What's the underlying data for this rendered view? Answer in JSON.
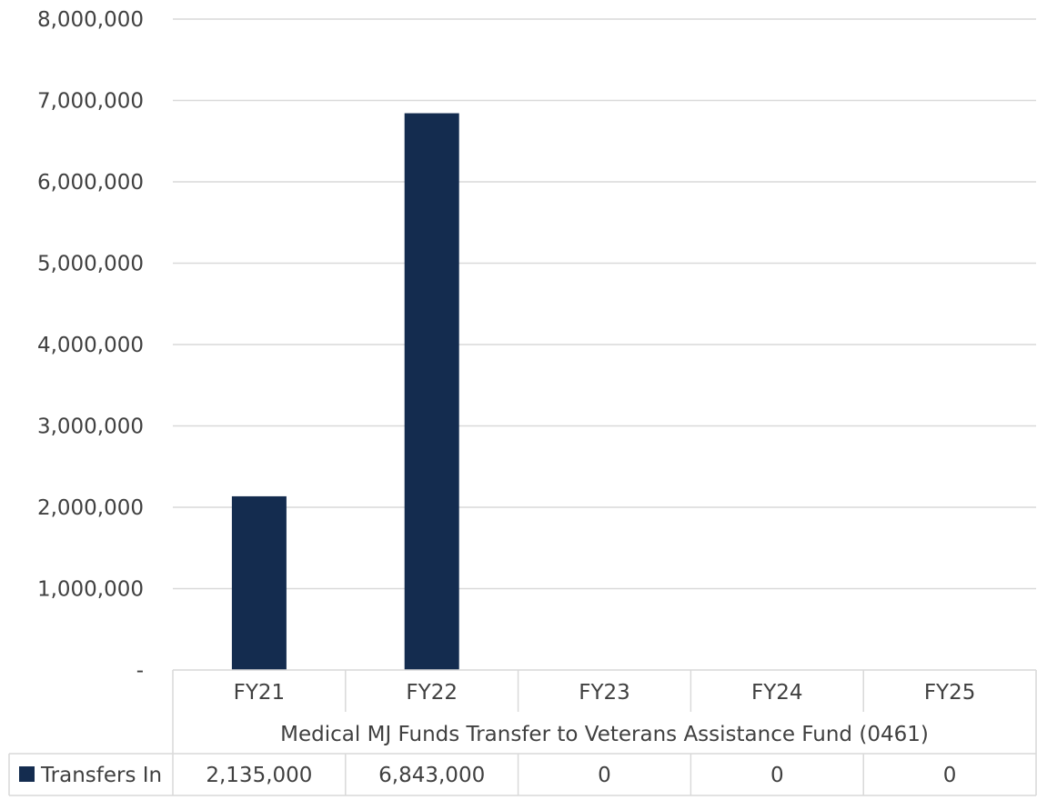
{
  "chart_data": {
    "type": "bar",
    "categories": [
      "FY21",
      "FY22",
      "FY23",
      "FY24",
      "FY25"
    ],
    "group_label": "Medical MJ Funds Transfer to Veterans Assistance Fund (0461)",
    "series": [
      {
        "name": "Transfers In",
        "values": [
          2135000,
          6843000,
          0,
          0,
          0
        ],
        "table_values": [
          "2,135,000",
          "6,843,000",
          "0",
          "0",
          "0"
        ]
      }
    ],
    "ylim": [
      0,
      8000000
    ],
    "yticks": [
      {
        "value": 0,
        "label": "-"
      },
      {
        "value": 1000000,
        "label": "1,000,000"
      },
      {
        "value": 2000000,
        "label": "2,000,000"
      },
      {
        "value": 3000000,
        "label": "3,000,000"
      },
      {
        "value": 4000000,
        "label": "4,000,000"
      },
      {
        "value": 5000000,
        "label": "5,000,000"
      },
      {
        "value": 6000000,
        "label": "6,000,000"
      },
      {
        "value": 7000000,
        "label": "7,000,000"
      },
      {
        "value": 8000000,
        "label": "8,000,000"
      }
    ],
    "grid": true,
    "legend": "data-table",
    "colors": {
      "bar": "#142c4f",
      "grid": "#d9d9d9",
      "text": "#404040"
    }
  }
}
